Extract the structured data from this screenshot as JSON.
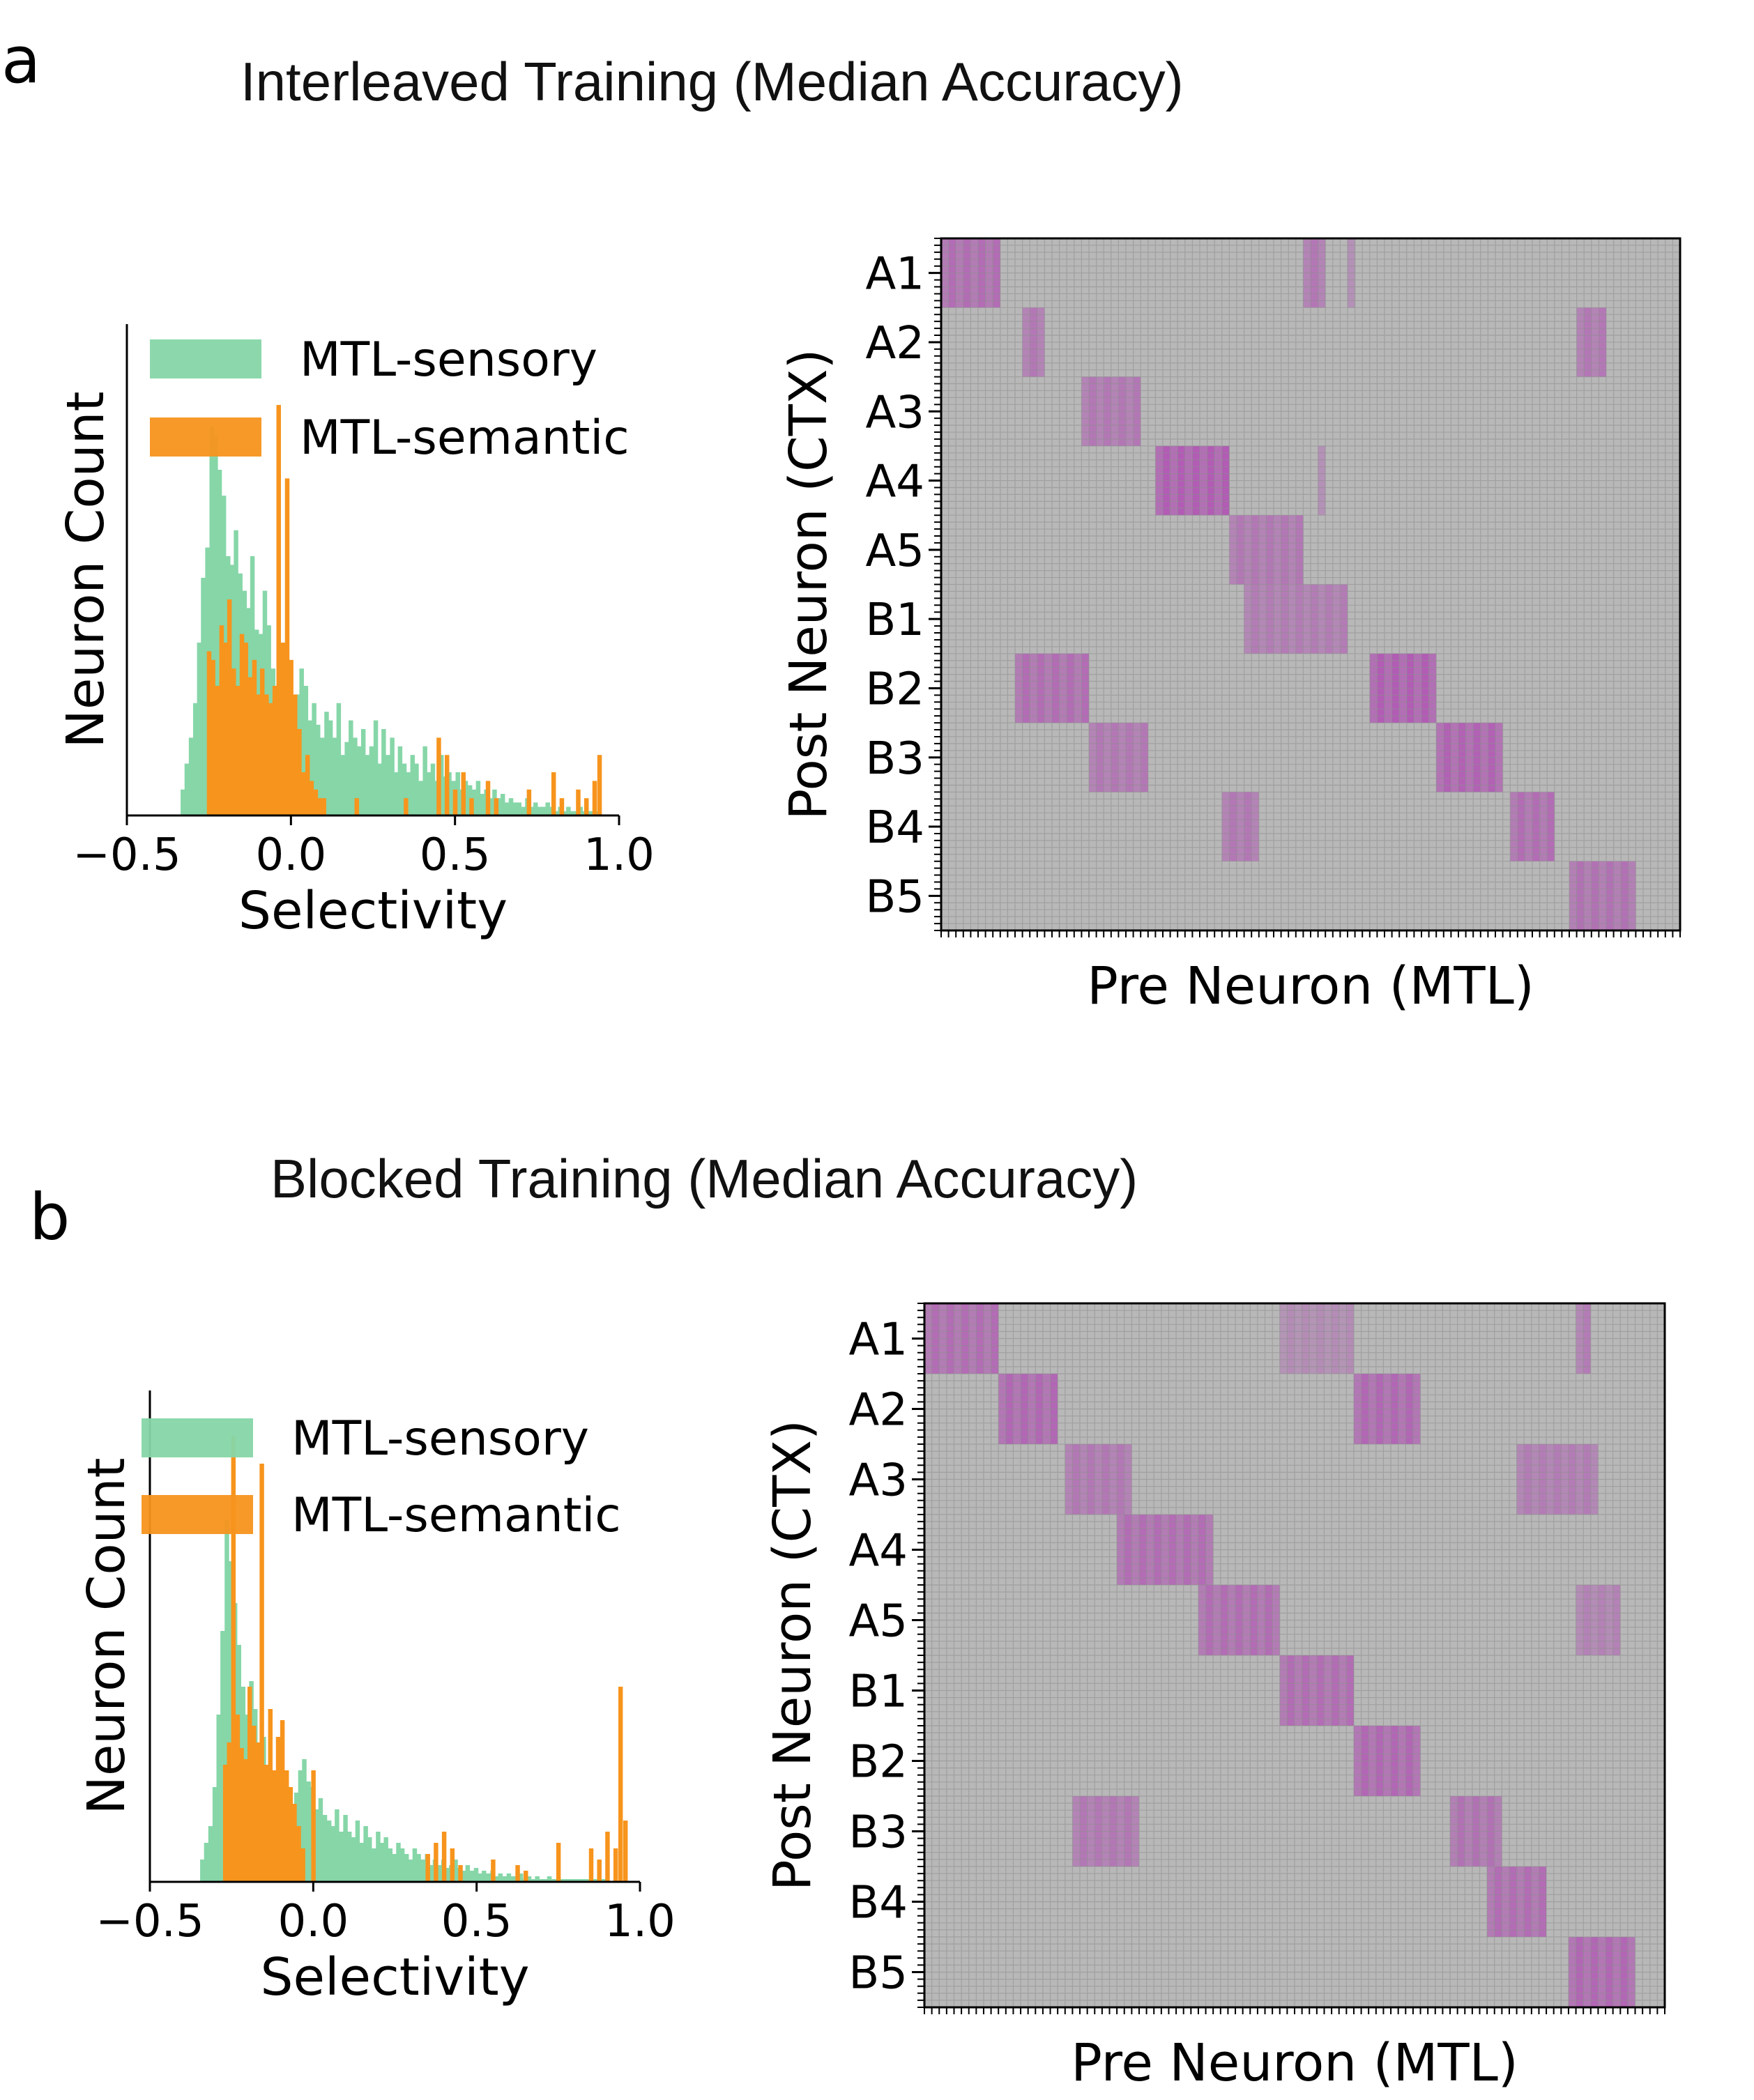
{
  "colors": {
    "sensory": "#86d6a8",
    "semantic": "#f7941d",
    "heat_bg": "#b8b8b8",
    "heat_grid": "#8c8c8c",
    "heat_strong": "#b04bb4"
  },
  "figure": {
    "panel_a_letter": "a",
    "panel_b_letter": "b",
    "panel_a_title": "Interleaved Training (Median Accuracy)",
    "panel_b_title": "Blocked Training (Median Accuracy)"
  },
  "chart_data": [
    {
      "id": "a-hist",
      "type": "bar",
      "xlabel": "Selectivity",
      "ylabel": "Neuron Count",
      "xlim": [
        -0.5,
        1.0
      ],
      "xticks": [
        "−0.5",
        "0.0",
        "0.5",
        "1.0"
      ],
      "legend": {
        "position": "top-left",
        "entries": [
          "MTL-sensory",
          "MTL-semantic"
        ]
      },
      "bin_width": 0.0125,
      "series": [
        {
          "name": "MTL-sensory",
          "x": [
            -0.33,
            -0.318,
            -0.305,
            -0.292,
            -0.28,
            -0.268,
            -0.255,
            -0.242,
            -0.23,
            -0.218,
            -0.205,
            -0.192,
            -0.18,
            -0.168,
            -0.155,
            -0.142,
            -0.13,
            -0.118,
            -0.105,
            -0.092,
            -0.08,
            -0.068,
            -0.055,
            -0.042,
            -0.03,
            -0.018,
            -0.005,
            0.008,
            0.02,
            0.032,
            0.045,
            0.058,
            0.07,
            0.082,
            0.095,
            0.108,
            0.12,
            0.132,
            0.145,
            0.158,
            0.17,
            0.182,
            0.195,
            0.208,
            0.22,
            0.232,
            0.245,
            0.258,
            0.27,
            0.282,
            0.295,
            0.308,
            0.32,
            0.332,
            0.345,
            0.358,
            0.37,
            0.382,
            0.395,
            0.408,
            0.42,
            0.432,
            0.445,
            0.458,
            0.47,
            0.482,
            0.495,
            0.508,
            0.52,
            0.532,
            0.545,
            0.558,
            0.57,
            0.582,
            0.595,
            0.608,
            0.62,
            0.632,
            0.645,
            0.658,
            0.67,
            0.682,
            0.695,
            0.708,
            0.72,
            0.732,
            0.745,
            0.758,
            0.77,
            0.782,
            0.795,
            0.808,
            0.82,
            0.832,
            0.845,
            0.858,
            0.87,
            0.882,
            0.895,
            0.908,
            0.92,
            0.932
          ],
          "values": [
            6,
            12,
            18,
            26,
            40,
            55,
            62,
            90,
            88,
            80,
            74,
            60,
            58,
            66,
            56,
            52,
            48,
            60,
            43,
            42,
            52,
            44,
            34,
            28,
            36,
            40,
            24,
            22,
            28,
            34,
            30,
            22,
            26,
            21,
            18,
            24,
            22,
            18,
            26,
            14,
            17,
            22,
            18,
            16,
            20,
            14,
            16,
            22,
            12,
            20,
            14,
            18,
            10,
            16,
            12,
            10,
            14,
            12,
            8,
            16,
            10,
            12,
            8,
            14,
            9,
            10,
            8,
            10,
            6,
            8,
            7,
            6,
            8,
            5,
            6,
            4,
            6,
            4,
            5,
            3,
            4,
            3,
            3,
            2,
            4,
            2,
            3,
            2,
            2,
            3,
            2,
            1,
            2,
            1,
            2,
            1,
            1,
            2,
            1,
            1,
            1,
            1
          ]
        },
        {
          "name": "MTL-semantic",
          "x": [
            -0.25,
            -0.238,
            -0.225,
            -0.212,
            -0.2,
            -0.188,
            -0.175,
            -0.162,
            -0.15,
            -0.138,
            -0.125,
            -0.112,
            -0.1,
            -0.088,
            -0.075,
            -0.062,
            -0.05,
            -0.038,
            -0.025,
            -0.012,
            0.0,
            0.012,
            0.025,
            0.038,
            0.05,
            0.062,
            0.075,
            0.088,
            0.1,
            0.2,
            0.35,
            0.45,
            0.475,
            0.5,
            0.525,
            0.55,
            0.6,
            0.625,
            0.725,
            0.8,
            0.825,
            0.875,
            0.9,
            0.925,
            0.94
          ],
          "values": [
            38,
            36,
            30,
            44,
            40,
            50,
            34,
            30,
            42,
            40,
            32,
            36,
            28,
            34,
            28,
            26,
            30,
            95,
            40,
            78,
            36,
            28,
            20,
            10,
            14,
            8,
            6,
            4,
            4,
            4,
            4,
            18,
            14,
            6,
            10,
            4,
            8,
            4,
            6,
            10,
            4,
            6,
            4,
            8,
            14
          ]
        }
      ]
    },
    {
      "id": "a-heatmap",
      "type": "heatmap",
      "xlabel": "Pre Neuron (MTL)",
      "ylabel": "Post Neuron (CTX)",
      "rows": [
        "A1",
        "A2",
        "A3",
        "A4",
        "A5",
        "B1",
        "B2",
        "B3",
        "B4",
        "B5"
      ],
      "n_cols": 100,
      "n_fine_rows": 100,
      "blocks": [
        {
          "row": "A1",
          "cols": [
            0,
            7
          ],
          "intensity": 0.7
        },
        {
          "row": "A1",
          "cols": [
            49,
            51
          ],
          "intensity": 0.6
        },
        {
          "row": "A1",
          "cols": [
            55,
            55
          ],
          "intensity": 0.45
        },
        {
          "row": "A2",
          "cols": [
            11,
            13
          ],
          "intensity": 0.6
        },
        {
          "row": "A2",
          "cols": [
            86,
            89
          ],
          "intensity": 0.6
        },
        {
          "row": "A3",
          "cols": [
            19,
            26
          ],
          "intensity": 0.6
        },
        {
          "row": "A4",
          "cols": [
            29,
            38
          ],
          "intensity": 0.85
        },
        {
          "row": "A4",
          "cols": [
            51,
            51
          ],
          "intensity": 0.45
        },
        {
          "row": "A5",
          "cols": [
            39,
            48
          ],
          "intensity": 0.6
        },
        {
          "row": "B1",
          "cols": [
            41,
            54
          ],
          "intensity": 0.55
        },
        {
          "row": "B2",
          "cols": [
            10,
            19
          ],
          "intensity": 0.7
        },
        {
          "row": "B2",
          "cols": [
            58,
            66
          ],
          "intensity": 0.85
        },
        {
          "row": "B3",
          "cols": [
            20,
            27
          ],
          "intensity": 0.6
        },
        {
          "row": "B3",
          "cols": [
            67,
            75
          ],
          "intensity": 0.8
        },
        {
          "row": "B4",
          "cols": [
            38,
            42
          ],
          "intensity": 0.6
        },
        {
          "row": "B4",
          "cols": [
            77,
            82
          ],
          "intensity": 0.7
        },
        {
          "row": "B5",
          "cols": [
            85,
            93
          ],
          "intensity": 0.65
        }
      ]
    },
    {
      "id": "b-hist",
      "type": "bar",
      "xlabel": "Selectivity",
      "ylabel": "Neuron Count",
      "xlim": [
        -0.5,
        1.0
      ],
      "xticks": [
        "−0.5",
        "0.0",
        "0.5",
        "1.0"
      ],
      "legend": {
        "position": "top-left",
        "entries": [
          "MTL-sensory",
          "MTL-semantic"
        ]
      },
      "bin_width": 0.0125,
      "series": [
        {
          "name": "MTL-sensory",
          "x": [
            -0.34,
            -0.328,
            -0.315,
            -0.302,
            -0.29,
            -0.278,
            -0.265,
            -0.252,
            -0.24,
            -0.228,
            -0.215,
            -0.202,
            -0.19,
            -0.178,
            -0.165,
            -0.152,
            -0.14,
            -0.128,
            -0.115,
            -0.102,
            -0.09,
            -0.078,
            -0.065,
            -0.052,
            -0.04,
            -0.028,
            -0.015,
            -0.002,
            0.01,
            0.022,
            0.035,
            0.048,
            0.06,
            0.072,
            0.085,
            0.098,
            0.11,
            0.122,
            0.135,
            0.148,
            0.16,
            0.172,
            0.185,
            0.198,
            0.21,
            0.222,
            0.235,
            0.248,
            0.26,
            0.272,
            0.285,
            0.298,
            0.31,
            0.322,
            0.335,
            0.348,
            0.36,
            0.372,
            0.385,
            0.398,
            0.41,
            0.422,
            0.435,
            0.448,
            0.46,
            0.472,
            0.485,
            0.498,
            0.51,
            0.522,
            0.535,
            0.548,
            0.56,
            0.572,
            0.585,
            0.598,
            0.61,
            0.622,
            0.635,
            0.648,
            0.66,
            0.672,
            0.685,
            0.698,
            0.71,
            0.722,
            0.735,
            0.748,
            0.76,
            0.772,
            0.785,
            0.798,
            0.81,
            0.822,
            0.835,
            0.848,
            0.86,
            0.872,
            0.885,
            0.898
          ],
          "values": [
            8,
            14,
            20,
            34,
            60,
            90,
            130,
            115,
            100,
            85,
            70,
            60,
            72,
            62,
            48,
            52,
            42,
            40,
            38,
            36,
            30,
            28,
            26,
            32,
            40,
            44,
            36,
            34,
            26,
            30,
            24,
            22,
            20,
            26,
            18,
            24,
            18,
            16,
            22,
            14,
            20,
            16,
            12,
            18,
            14,
            16,
            12,
            10,
            14,
            12,
            10,
            8,
            12,
            10,
            8,
            10,
            6,
            8,
            6,
            8,
            5,
            6,
            8,
            5,
            4,
            6,
            4,
            5,
            3,
            4,
            3,
            4,
            2,
            3,
            2,
            3,
            2,
            2,
            3,
            1,
            2,
            1,
            2,
            1,
            1,
            2,
            1,
            1,
            1,
            1,
            1,
            1,
            1,
            1,
            1,
            1,
            1,
            1,
            1,
            1
          ]
        },
        {
          "name": "MTL-semantic",
          "x": [
            -0.27,
            -0.258,
            -0.245,
            -0.232,
            -0.22,
            -0.208,
            -0.195,
            -0.182,
            -0.17,
            -0.158,
            -0.145,
            -0.132,
            -0.12,
            -0.108,
            -0.095,
            -0.082,
            -0.07,
            -0.058,
            -0.045,
            -0.032,
            0.0,
            0.35,
            0.375,
            0.4,
            0.425,
            0.45,
            0.55,
            0.625,
            0.65,
            0.75,
            0.85,
            0.875,
            0.9,
            0.925,
            0.94,
            0.955
          ],
          "values": [
            42,
            50,
            160,
            60,
            48,
            44,
            70,
            56,
            50,
            150,
            42,
            62,
            40,
            52,
            58,
            40,
            34,
            28,
            20,
            12,
            40,
            10,
            14,
            18,
            12,
            6,
            8,
            6,
            4,
            14,
            12,
            8,
            18,
            12,
            70,
            22
          ]
        }
      ]
    },
    {
      "id": "b-heatmap",
      "type": "heatmap",
      "xlabel": "Pre Neuron (MTL)",
      "ylabel": "Post Neuron (CTX)",
      "rows": [
        "A1",
        "A2",
        "A3",
        "A4",
        "A5",
        "B1",
        "B2",
        "B3",
        "B4",
        "B5"
      ],
      "n_cols": 100,
      "n_fine_rows": 100,
      "blocks": [
        {
          "row": "A1",
          "cols": [
            0,
            9
          ],
          "intensity": 0.7
        },
        {
          "row": "A1",
          "cols": [
            48,
            57
          ],
          "intensity": 0.4
        },
        {
          "row": "A1",
          "cols": [
            88,
            89
          ],
          "intensity": 0.55
        },
        {
          "row": "A2",
          "cols": [
            10,
            17
          ],
          "intensity": 0.75
        },
        {
          "row": "A2",
          "cols": [
            58,
            66
          ],
          "intensity": 0.75
        },
        {
          "row": "A3",
          "cols": [
            19,
            27
          ],
          "intensity": 0.6
        },
        {
          "row": "A3",
          "cols": [
            80,
            90
          ],
          "intensity": 0.55
        },
        {
          "row": "A4",
          "cols": [
            26,
            38
          ],
          "intensity": 0.7
        },
        {
          "row": "A5",
          "cols": [
            37,
            47
          ],
          "intensity": 0.7
        },
        {
          "row": "A5",
          "cols": [
            88,
            93
          ],
          "intensity": 0.5
        },
        {
          "row": "B1",
          "cols": [
            48,
            57
          ],
          "intensity": 0.7
        },
        {
          "row": "B2",
          "cols": [
            58,
            66
          ],
          "intensity": 0.75
        },
        {
          "row": "B3",
          "cols": [
            20,
            28
          ],
          "intensity": 0.6
        },
        {
          "row": "B3",
          "cols": [
            71,
            77
          ],
          "intensity": 0.65
        },
        {
          "row": "B4",
          "cols": [
            76,
            83
          ],
          "intensity": 0.7
        },
        {
          "row": "B5",
          "cols": [
            87,
            95
          ],
          "intensity": 0.75
        }
      ]
    }
  ]
}
